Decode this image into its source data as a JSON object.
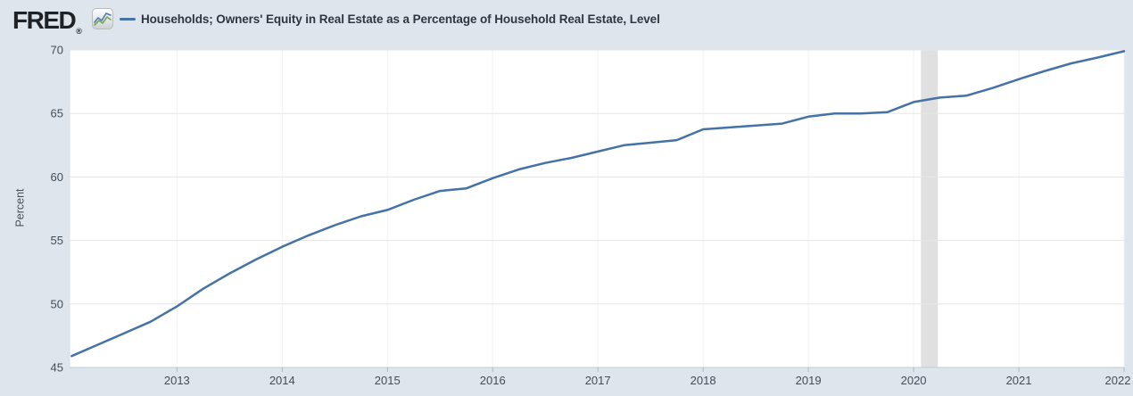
{
  "header": {
    "logo_text": "FRED",
    "registered_mark": "®",
    "series_title": "Households; Owners' Equity in Real Estate as a Percentage of Household Real Estate, Level"
  },
  "colors": {
    "background": "#dfe5ed",
    "plot_background": "#ffffff",
    "series_line": "#4572a7",
    "gridline": "#e6e6e6",
    "vertical_gridline": "#f0f2f4",
    "axis_line": "#c2cbd6",
    "tick_mark": "#aeb7c2",
    "recession_band": "#e0e0e0",
    "tick_text": "#444d56",
    "logo_icon_blue": "#4a7ab5",
    "logo_icon_green": "#76a554"
  },
  "chart_data": {
    "type": "line",
    "title": "Households; Owners' Equity in Real Estate as a Percentage of Household Real Estate, Level",
    "ylabel": "Percent",
    "xlabel": "",
    "grid": true,
    "legend_position": "top",
    "ylim": [
      45,
      70
    ],
    "xlim": [
      2011.98,
      2022.0
    ],
    "yticks": [
      45,
      50,
      55,
      60,
      65,
      70
    ],
    "xticks": [
      2013,
      2014,
      2015,
      2016,
      2017,
      2018,
      2019,
      2020,
      2021,
      2022
    ],
    "recession_band": {
      "start": 2020.07,
      "end": 2020.23
    },
    "series_name": "Households; Owners' Equity in Real Estate as a Percentage of Household Real Estate, Level",
    "x": [
      2012.0,
      2012.25,
      2012.5,
      2012.75,
      2013.0,
      2013.25,
      2013.5,
      2013.75,
      2014.0,
      2014.25,
      2014.5,
      2014.75,
      2015.0,
      2015.25,
      2015.5,
      2015.75,
      2016.0,
      2016.25,
      2016.5,
      2016.75,
      2017.0,
      2017.25,
      2017.5,
      2017.75,
      2018.0,
      2018.25,
      2018.5,
      2018.75,
      2019.0,
      2019.25,
      2019.5,
      2019.75,
      2020.0,
      2020.25,
      2020.5,
      2020.75,
      2021.0,
      2021.25,
      2021.5,
      2021.75,
      2022.0
    ],
    "values": [
      45.9,
      46.8,
      47.7,
      48.6,
      49.8,
      51.2,
      52.4,
      53.5,
      54.5,
      55.4,
      56.2,
      56.9,
      57.4,
      58.2,
      58.9,
      59.1,
      59.9,
      60.6,
      61.1,
      61.5,
      62.0,
      62.5,
      62.7,
      62.9,
      63.75,
      63.9,
      64.05,
      64.2,
      64.75,
      65.0,
      65.0,
      65.1,
      65.9,
      66.25,
      66.4,
      67.0,
      67.7,
      68.35,
      68.95,
      69.4,
      69.9
    ]
  }
}
